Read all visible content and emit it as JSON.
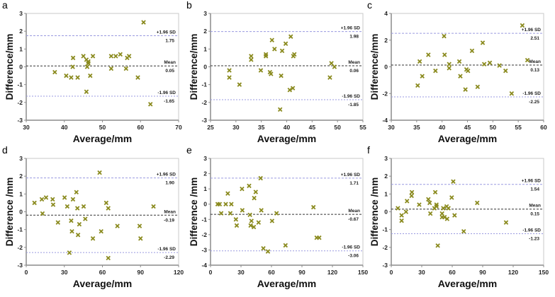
{
  "colors": {
    "marker": "#8a8a1e",
    "sd_line": "#9a9ae0",
    "mean_line": "#333333",
    "axis": "#8c8c8c"
  },
  "chart_data": [
    {
      "type": "scatter",
      "panel": "a",
      "xlabel": "Average/mm",
      "ylabel": "Difference/mm",
      "xlim": [
        30,
        70
      ],
      "ylim": [
        -3,
        3
      ],
      "xticks": [
        30,
        40,
        50,
        60,
        70
      ],
      "yticks": [
        -3,
        -2,
        -1,
        0,
        1,
        2,
        3
      ],
      "upper_label": "+1.96 SD",
      "upper": 1.75,
      "upper_text": "1.75",
      "mean_label": "Mean",
      "mean": 0.05,
      "mean_text": "0.05",
      "lower_label": "-1.96 SD",
      "lower": -1.65,
      "lower_text": "-1.65",
      "points": [
        [
          37.5,
          -0.3
        ],
        [
          40.5,
          -0.5
        ],
        [
          41.8,
          -0.6
        ],
        [
          42.2,
          0
        ],
        [
          42.3,
          0.5
        ],
        [
          43.5,
          -0.6
        ],
        [
          45,
          0.6
        ],
        [
          45.8,
          0.4
        ],
        [
          45.8,
          -1.4
        ],
        [
          46,
          0
        ],
        [
          46.3,
          0.3
        ],
        [
          46.3,
          0.2
        ],
        [
          46.8,
          -0.5
        ],
        [
          47.5,
          0.6
        ],
        [
          52.3,
          0.6
        ],
        [
          52.3,
          -0.1
        ],
        [
          53.5,
          0.6
        ],
        [
          54.7,
          0.7
        ],
        [
          56.2,
          -0.1
        ],
        [
          56.5,
          0.5
        ],
        [
          57,
          0.6
        ],
        [
          59.3,
          -0.6
        ],
        [
          60.8,
          2.5
        ],
        [
          62.6,
          -2.1
        ]
      ]
    },
    {
      "type": "scatter",
      "panel": "b",
      "xlabel": "Average/mm",
      "ylabel": "Difference/mm",
      "xlim": [
        25,
        55
      ],
      "ylim": [
        -3,
        3
      ],
      "xticks": [
        25,
        30,
        35,
        40,
        45,
        50,
        55
      ],
      "yticks": [
        -3,
        -2,
        -1,
        0,
        1,
        2,
        3
      ],
      "upper_label": "+1.96 SD",
      "upper": 1.98,
      "upper_text": "1.98",
      "mean_label": "Mean",
      "mean": 0.06,
      "mean_text": "0.06",
      "lower_label": "-1.96 SD",
      "lower": -1.85,
      "lower_text": "-1.85",
      "points": [
        [
          28.7,
          -0.2
        ],
        [
          28.7,
          -0.6
        ],
        [
          30.7,
          -1
        ],
        [
          33,
          0.6
        ],
        [
          33,
          0.4
        ],
        [
          34.9,
          -0.2
        ],
        [
          35.9,
          0.7
        ],
        [
          35.9,
          0.6
        ],
        [
          36.7,
          -0.3
        ],
        [
          36.9,
          -0.4
        ],
        [
          37.1,
          1.5
        ],
        [
          37.6,
          1
        ],
        [
          38.7,
          -2.4
        ],
        [
          38.9,
          -0.5
        ],
        [
          39.1,
          0.9
        ],
        [
          39.8,
          1.3
        ],
        [
          40.6,
          -1.3
        ],
        [
          40.8,
          1.7
        ],
        [
          41.2,
          -1.2
        ],
        [
          41.3,
          0.6
        ],
        [
          41.5,
          0.7
        ],
        [
          48.5,
          -0.6
        ],
        [
          48.8,
          0.2
        ],
        [
          49.4,
          0
        ]
      ]
    },
    {
      "type": "scatter",
      "panel": "c",
      "xlabel": "Average/mm",
      "ylabel": "Difference/mm",
      "xlim": [
        30,
        60
      ],
      "ylim": [
        -4,
        4
      ],
      "xticks": [
        30,
        35,
        40,
        45,
        50,
        55,
        60
      ],
      "yticks": [
        -4,
        -2,
        0,
        2,
        4
      ],
      "upper_label": "+1.96 SD",
      "upper": 2.51,
      "upper_text": "2.51",
      "mean_label": "Mean",
      "mean": 0.13,
      "mean_text": "0.13",
      "lower_label": "-1.96 SD",
      "lower": -2.25,
      "lower_text": "-2.25",
      "points": [
        [
          35.2,
          -1.4
        ],
        [
          35.6,
          0.4
        ],
        [
          36.1,
          -0.7
        ],
        [
          37.3,
          0.9
        ],
        [
          38.7,
          -0.3
        ],
        [
          40.4,
          2.3
        ],
        [
          40.5,
          0.9
        ],
        [
          41.4,
          0.2
        ],
        [
          41.4,
          -0.1
        ],
        [
          43.4,
          0.4
        ],
        [
          43.6,
          -0.7
        ],
        [
          44.6,
          -1.7
        ],
        [
          44.8,
          -0.2
        ],
        [
          45.1,
          -0.3
        ],
        [
          45.9,
          1.2
        ],
        [
          47,
          -1.5
        ],
        [
          48,
          1.8
        ],
        [
          48.3,
          0.2
        ],
        [
          49.4,
          0.3
        ],
        [
          51.3,
          0.1
        ],
        [
          52.5,
          -0.3
        ],
        [
          53.7,
          -2
        ],
        [
          55.8,
          3.1
        ],
        [
          56.8,
          0.5
        ]
      ]
    },
    {
      "type": "scatter",
      "panel": "d",
      "xlabel": "Average/mm",
      "ylabel": "Difference /mm",
      "xlim": [
        0,
        120
      ],
      "ylim": [
        -3,
        3
      ],
      "xticks": [
        0,
        30,
        60,
        90,
        120
      ],
      "yticks": [
        -3,
        -2,
        -1,
        0,
        1,
        2,
        3
      ],
      "upper_label": "+1.96 SD",
      "upper": 1.9,
      "upper_text": "1.90",
      "mean_label": "Mean",
      "mean": -0.19,
      "mean_text": "-0.19",
      "lower_label": "-1.96 SD",
      "lower": -2.29,
      "lower_text": "-2.29",
      "points": [
        [
          6.5,
          0.5
        ],
        [
          12.3,
          0.7
        ],
        [
          12.8,
          -0.1
        ],
        [
          15.6,
          0.8
        ],
        [
          20.8,
          0.7
        ],
        [
          21.2,
          0.4
        ],
        [
          25,
          -0.6
        ],
        [
          30.2,
          0.8
        ],
        [
          32.3,
          0.3
        ],
        [
          34,
          -2.3
        ],
        [
          35.4,
          -0.5
        ],
        [
          36,
          -1.1
        ],
        [
          36.8,
          0.7
        ],
        [
          39.5,
          1.1
        ],
        [
          40.3,
          0.2
        ],
        [
          40.8,
          -1.3
        ],
        [
          41.8,
          -0.7
        ],
        [
          45.2,
          0.3
        ],
        [
          46.5,
          -0.4
        ],
        [
          52.5,
          -1.5
        ],
        [
          57.8,
          2.2
        ],
        [
          59,
          -1.1
        ],
        [
          63,
          0.5
        ],
        [
          64.6,
          0.2
        ],
        [
          64.6,
          -2.6
        ],
        [
          71.8,
          -0.8
        ],
        [
          89.3,
          -0.8
        ],
        [
          90,
          -1.5
        ],
        [
          100.2,
          0.3
        ]
      ]
    },
    {
      "type": "scatter",
      "panel": "e",
      "xlabel": "Average/mm",
      "ylabel": "Difference /mm",
      "xlim": [
        0,
        150
      ],
      "ylim": [
        -4,
        3
      ],
      "xticks": [
        0,
        30,
        60,
        90,
        120,
        150
      ],
      "yticks": [
        -4,
        -3,
        -2,
        -1,
        0,
        1,
        2,
        3
      ],
      "upper_label": "+1.96 SD",
      "upper": 1.71,
      "upper_text": "1.71",
      "mean_label": "Mean",
      "mean": -0.67,
      "mean_text": "-0.67",
      "lower_label": "-1.96 SD",
      "lower": -3.06,
      "lower_text": "-3.06",
      "points": [
        [
          7,
          0
        ],
        [
          9,
          0
        ],
        [
          10.5,
          -0.6
        ],
        [
          15,
          0
        ],
        [
          17,
          0.7
        ],
        [
          19.5,
          -0.6
        ],
        [
          20.5,
          0
        ],
        [
          25,
          -1
        ],
        [
          25.8,
          -1.4
        ],
        [
          31,
          1
        ],
        [
          31.3,
          -0.4
        ],
        [
          38,
          1.2
        ],
        [
          38.8,
          -0.7
        ],
        [
          39.5,
          -1.4
        ],
        [
          40.3,
          -1.1
        ],
        [
          42.6,
          -1.5
        ],
        [
          43,
          0.4
        ],
        [
          44.5,
          0.8
        ],
        [
          47.3,
          -1.2
        ],
        [
          49.3,
          1.7
        ],
        [
          50,
          -0.4
        ],
        [
          52,
          -2.9
        ],
        [
          56.5,
          -3.1
        ],
        [
          60.6,
          -1.1
        ],
        [
          65,
          -0.6
        ],
        [
          73.8,
          -2.7
        ],
        [
          101.3,
          -0.2
        ],
        [
          104.5,
          -2.2
        ],
        [
          107,
          -2.2
        ]
      ]
    },
    {
      "type": "scatter",
      "panel": "f",
      "xlabel": "Average/mm",
      "ylabel": "Difference /mm",
      "xlim": [
        0,
        150
      ],
      "ylim": [
        -3,
        3
      ],
      "xticks": [
        0,
        30,
        60,
        90,
        120,
        150
      ],
      "yticks": [
        -3,
        -2,
        -1,
        0,
        1,
        2,
        3
      ],
      "upper_label": "+1.96 SD",
      "upper": 1.54,
      "upper_text": "1.54",
      "mean_label": "Mean",
      "mean": 0.15,
      "mean_text": "0.15",
      "lower_label": "-1.96 SD",
      "lower": -1.23,
      "lower_text": "-1.23",
      "points": [
        [
          6.5,
          0.2
        ],
        [
          10.2,
          -0.2
        ],
        [
          10.2,
          -0.5
        ],
        [
          14.5,
          0
        ],
        [
          15.5,
          0.6
        ],
        [
          20,
          0.9
        ],
        [
          20.3,
          1.1
        ],
        [
          27.5,
          0.4
        ],
        [
          36.5,
          0.7
        ],
        [
          37.8,
          0.5
        ],
        [
          38.5,
          -0.1
        ],
        [
          42.5,
          0.2
        ],
        [
          43.3,
          1.1
        ],
        [
          44.5,
          0.4
        ],
        [
          44.5,
          0.3
        ],
        [
          45.8,
          -1.9
        ],
        [
          50,
          -0.1
        ],
        [
          50,
          -0.3
        ],
        [
          51.2,
          0.2
        ],
        [
          52.4,
          -0.3
        ],
        [
          54.5,
          0.3
        ],
        [
          55,
          -0.4
        ],
        [
          56.3,
          0.2
        ],
        [
          59.5,
          0.8
        ],
        [
          61,
          1.7
        ],
        [
          62.3,
          -0.2
        ],
        [
          71.3,
          -1.1
        ],
        [
          84.6,
          0.5
        ],
        [
          113,
          -0.6
        ]
      ]
    }
  ]
}
